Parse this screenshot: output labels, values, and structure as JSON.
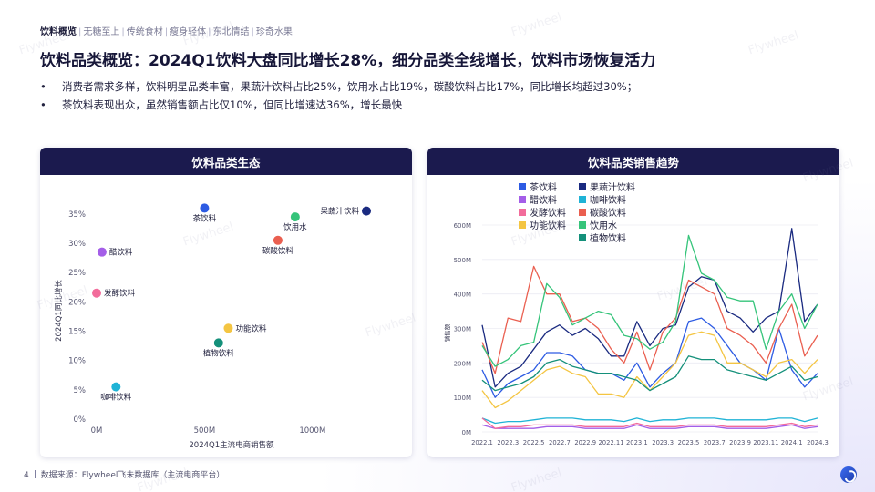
{
  "nav": {
    "active": "饮料概览",
    "items": [
      "无糖至上",
      "传统食材",
      "瘦身轻体",
      "东北情结",
      "珍奇水果"
    ]
  },
  "watermark": "Flywheel",
  "title": "饮料品类概览：2024Q1饮料大盘同比增长28%，细分品类全线增长，饮料市场恢复活力",
  "bullets": [
    "消费者需求多样，饮料明星品类丰富，果蔬汁饮料占比25%，饮用水占比19%，碳酸饮料占比17%，同比增长均超过30%；",
    "茶饮料表现出众，虽然销售额占比仅10%，但同比增速达36%，增长最快"
  ],
  "left_panel": {
    "title": "饮料品类生态"
  },
  "right_panel": {
    "title": "饮料品类销售趋势"
  },
  "footer": {
    "page": "4",
    "source": "数据来源：Flywheel飞未数据库（主流电商平台）"
  },
  "colors": {
    "navy": "#1b1a4e"
  },
  "chart_data": [
    {
      "type": "scatter",
      "title": "",
      "xlabel": "2024Q1主流电商销售额",
      "ylabel": "2024Q1同比增长",
      "xlim": [
        0,
        1250
      ],
      "ylim": [
        0,
        37
      ],
      "x_ticks": [
        {
          "v": 0,
          "label": "0M"
        },
        {
          "v": 500,
          "label": "500M"
        },
        {
          "v": 1000,
          "label": "1000M"
        }
      ],
      "y_ticks": [
        {
          "v": 0,
          "label": "0%"
        },
        {
          "v": 5,
          "label": "5%"
        },
        {
          "v": 10,
          "label": "10%"
        },
        {
          "v": 15,
          "label": "15%"
        },
        {
          "v": 20,
          "label": "20%"
        },
        {
          "v": 25,
          "label": "25%"
        },
        {
          "v": 30,
          "label": "30%"
        },
        {
          "v": 35,
          "label": "35%"
        }
      ],
      "grid": false,
      "points": [
        {
          "name": "茶饮料",
          "x": 500,
          "y": 36,
          "color": "#2d5be3",
          "label_pos": "below"
        },
        {
          "name": "果蔬汁饮料",
          "x": 1250,
          "y": 35.5,
          "color": "#1a2a80",
          "label_pos": "left"
        },
        {
          "name": "饮用水",
          "x": 920,
          "y": 34.5,
          "color": "#35c47a",
          "label_pos": "below"
        },
        {
          "name": "碳酸饮料",
          "x": 840,
          "y": 30.5,
          "color": "#ea5f50",
          "label_pos": "below"
        },
        {
          "name": "醋饮料",
          "x": 25,
          "y": 28.5,
          "color": "#a45ee8",
          "label_pos": "right"
        },
        {
          "name": "发酵饮料",
          "x": 0,
          "y": 21.5,
          "color": "#f26c9b",
          "label_pos": "right"
        },
        {
          "name": "功能饮料",
          "x": 610,
          "y": 15.5,
          "color": "#f4c542",
          "label_pos": "right"
        },
        {
          "name": "植物饮料",
          "x": 565,
          "y": 13,
          "color": "#14907a",
          "label_pos": "below"
        },
        {
          "name": "咖啡饮料",
          "x": 90,
          "y": 5.5,
          "color": "#1fb3d6",
          "label_pos": "below"
        }
      ]
    },
    {
      "type": "line",
      "title": "",
      "xlabel": "",
      "ylabel": "销售额",
      "ylim": [
        0,
        600
      ],
      "y_ticks": [
        {
          "v": 0,
          "label": "0M"
        },
        {
          "v": 100,
          "label": "100M"
        },
        {
          "v": 200,
          "label": "200M"
        },
        {
          "v": 300,
          "label": "300M"
        },
        {
          "v": 400,
          "label": "400M"
        },
        {
          "v": 500,
          "label": "500M"
        },
        {
          "v": 600,
          "label": "600M"
        }
      ],
      "x": [
        "2022.1",
        "2022.2",
        "2022.3",
        "2022.4",
        "2022.5",
        "2022.6",
        "2022.7",
        "2022.8",
        "2022.9",
        "2022.10",
        "2022.11",
        "2022.12",
        "2023.1",
        "2023.2",
        "2023.3",
        "2023.4",
        "2023.5",
        "2023.6",
        "2023.7",
        "2023.8",
        "2023.9",
        "2023.10",
        "2023.11",
        "2023.12",
        "2024.1",
        "2024.2",
        "2024.3"
      ],
      "x_ticks": [
        "2022.1",
        "2022.3",
        "2022.5",
        "2022.7",
        "2022.9",
        "2022.11",
        "2023.1",
        "2023.3",
        "2023.5",
        "2023.7",
        "2023.9",
        "2023.11",
        "2024.1",
        "2024.3"
      ],
      "legend_position": "top",
      "series": [
        {
          "name": "茶饮料",
          "color": "#2d5be3",
          "values": [
            180,
            100,
            140,
            160,
            180,
            230,
            230,
            220,
            180,
            170,
            170,
            150,
            200,
            130,
            170,
            200,
            320,
            330,
            300,
            250,
            200,
            180,
            150,
            300,
            180,
            130,
            170
          ]
        },
        {
          "name": "果蔬汁饮料",
          "color": "#1a2a80",
          "values": [
            310,
            130,
            170,
            190,
            240,
            290,
            310,
            280,
            300,
            270,
            220,
            220,
            320,
            250,
            300,
            310,
            420,
            450,
            440,
            350,
            330,
            290,
            330,
            350,
            590,
            320,
            370
          ]
        },
        {
          "name": "醋饮料",
          "color": "#a45ee8",
          "values": [
            20,
            10,
            10,
            10,
            10,
            15,
            15,
            15,
            10,
            10,
            10,
            10,
            20,
            10,
            10,
            10,
            15,
            15,
            15,
            10,
            10,
            10,
            10,
            15,
            20,
            10,
            15
          ]
        },
        {
          "name": "咖啡饮料",
          "color": "#1fb3d6",
          "values": [
            40,
            25,
            30,
            30,
            35,
            40,
            40,
            40,
            35,
            35,
            35,
            30,
            40,
            30,
            35,
            35,
            40,
            40,
            40,
            35,
            35,
            35,
            35,
            40,
            40,
            30,
            40
          ]
        },
        {
          "name": "发酵饮料",
          "color": "#f26c9b",
          "values": [
            40,
            10,
            15,
            15,
            20,
            20,
            20,
            20,
            15,
            15,
            15,
            15,
            25,
            15,
            15,
            15,
            20,
            20,
            20,
            15,
            15,
            15,
            15,
            20,
            25,
            15,
            20
          ]
        },
        {
          "name": "碳酸饮料",
          "color": "#ea5f50",
          "values": [
            260,
            170,
            330,
            320,
            480,
            400,
            400,
            320,
            330,
            300,
            240,
            200,
            290,
            180,
            290,
            330,
            440,
            420,
            400,
            300,
            280,
            250,
            200,
            300,
            370,
            220,
            280
          ]
        },
        {
          "name": "功能饮料",
          "color": "#f4c542",
          "values": [
            120,
            70,
            90,
            120,
            150,
            180,
            190,
            170,
            160,
            110,
            110,
            100,
            160,
            120,
            160,
            200,
            280,
            290,
            280,
            200,
            200,
            180,
            160,
            200,
            210,
            170,
            210
          ]
        },
        {
          "name": "饮用水",
          "color": "#35c47a",
          "values": [
            250,
            190,
            210,
            250,
            260,
            430,
            390,
            310,
            330,
            350,
            340,
            280,
            270,
            240,
            260,
            320,
            570,
            460,
            440,
            390,
            380,
            380,
            240,
            350,
            400,
            300,
            370
          ]
        },
        {
          "name": "植物饮料",
          "color": "#14907a",
          "values": [
            150,
            120,
            130,
            140,
            160,
            200,
            210,
            190,
            180,
            170,
            170,
            160,
            150,
            120,
            140,
            160,
            220,
            210,
            210,
            180,
            170,
            160,
            150,
            170,
            190,
            150,
            160
          ]
        }
      ]
    }
  ]
}
